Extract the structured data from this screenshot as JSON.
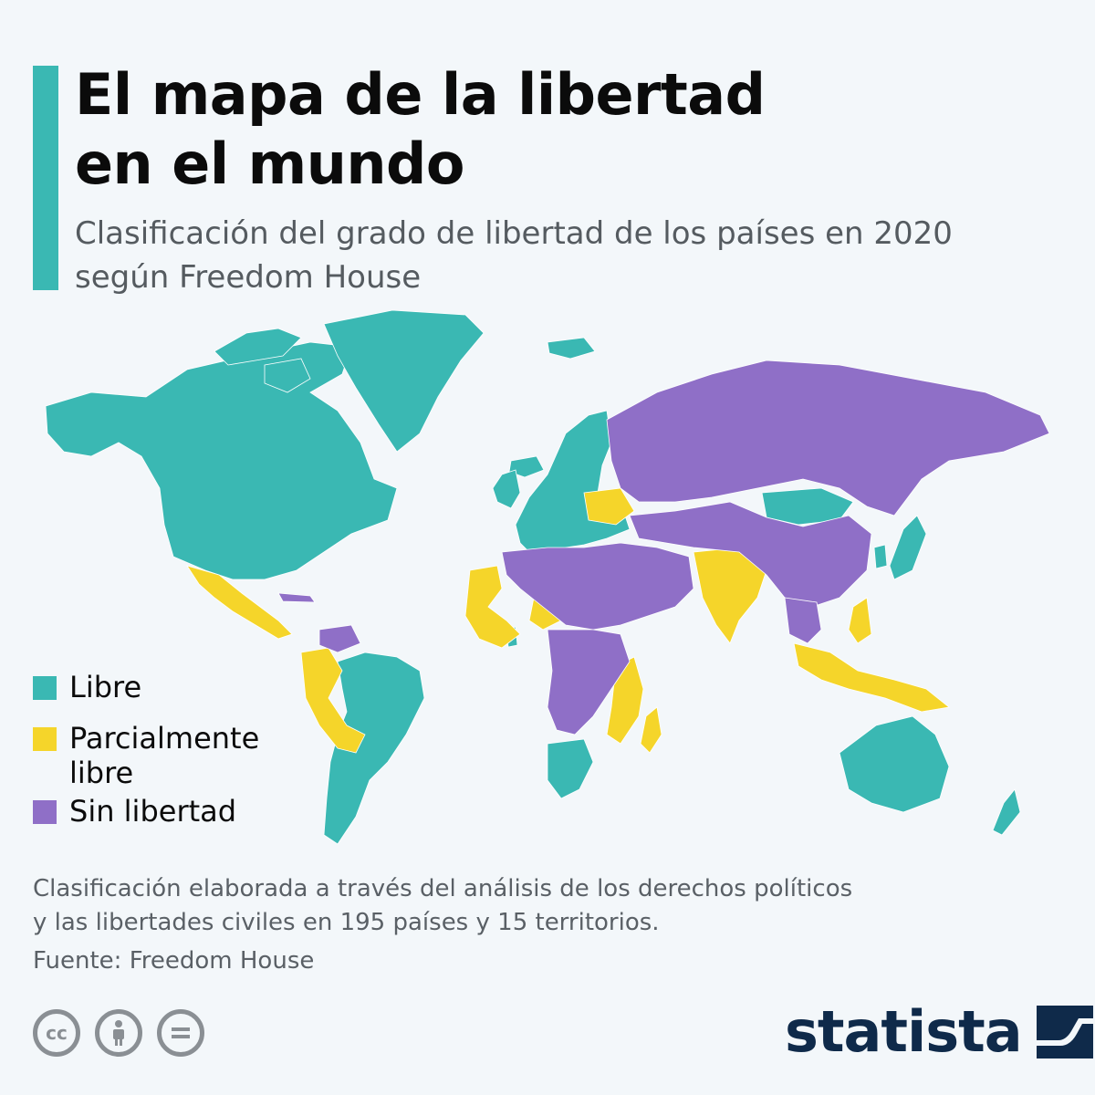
{
  "header": {
    "title_lines": [
      "El mapa de la libertad",
      "en el mundo"
    ],
    "subtitle_lines": [
      "Clasificación del grado de libertad de los países en 2020",
      "según Freedom House"
    ]
  },
  "legend": {
    "free": "Libre",
    "partial_lines": [
      "Parcialmente",
      "libre"
    ],
    "not_free": "Sin libertad"
  },
  "colors": {
    "free": "#3ab8b3",
    "partial": "#f5d52a",
    "not_free": "#8f6fc7",
    "background": "#f3f7fa",
    "accent": "#3ab8b3",
    "brand": "#0f2a4a"
  },
  "footer": {
    "note_lines": [
      "Clasificación elaborada a través del análisis de los derechos políticos",
      "y las libertades civiles en 195 países y 15 territorios."
    ],
    "source": "Fuente: Freedom House",
    "brand": "statista",
    "license_icons": [
      "cc-icon",
      "by-attribution-icon",
      "no-derivatives-icon"
    ]
  }
}
